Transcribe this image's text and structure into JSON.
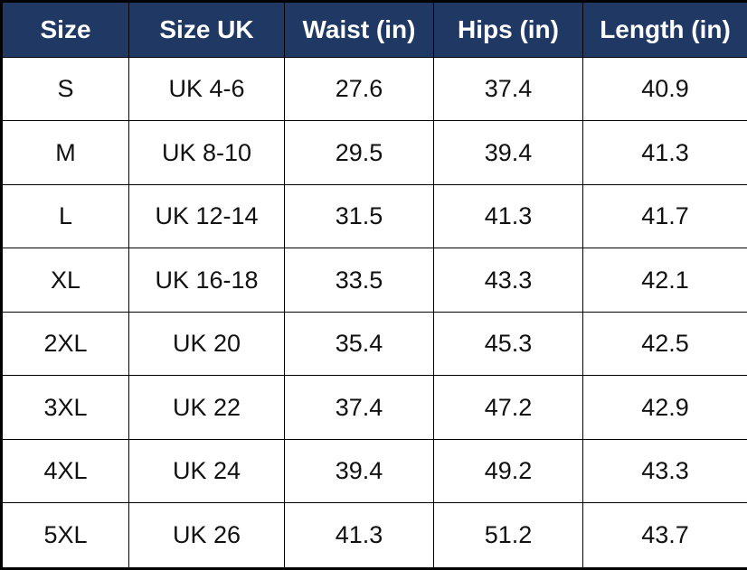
{
  "chart_data": {
    "type": "table",
    "columns": [
      "Size",
      "Size UK",
      "Waist (in)",
      "Hips (in)",
      "Length (in)"
    ],
    "rows": [
      [
        "S",
        "UK 4-6",
        "27.6",
        "37.4",
        "40.9"
      ],
      [
        "M",
        "UK 8-10",
        "29.5",
        "39.4",
        "41.3"
      ],
      [
        "L",
        "UK 12-14",
        "31.5",
        "41.3",
        "41.7"
      ],
      [
        "XL",
        "UK 16-18",
        "33.5",
        "43.3",
        "42.1"
      ],
      [
        "2XL",
        "UK 20",
        "35.4",
        "45.3",
        "42.5"
      ],
      [
        "3XL",
        "UK 22",
        "37.4",
        "47.2",
        "42.9"
      ],
      [
        "4XL",
        "UK 24",
        "39.4",
        "49.2",
        "43.3"
      ],
      [
        "5XL",
        "UK 26",
        "41.3",
        "51.2",
        "43.7"
      ]
    ]
  },
  "style": {
    "header_bg": "#1F3864",
    "header_text": "#FFFFFF",
    "body_text": "#111111",
    "border_color": "#000000",
    "row_bg": "#FFFFFF"
  }
}
